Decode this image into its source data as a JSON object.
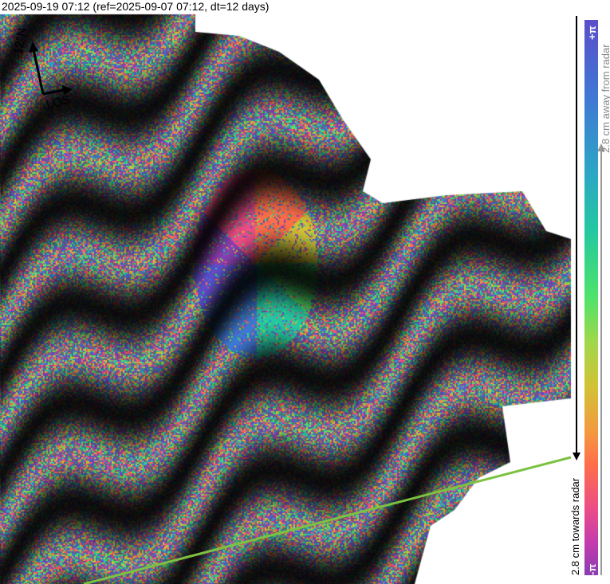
{
  "title": "2025-09-19 07:12 (ref=2025-09-07 07:12, dt=12 days)",
  "orientation": {
    "north_label": "-12°N",
    "los_label": "LOS",
    "icon": "north-los-arrows-icon"
  },
  "colorbar": {
    "top_label": "+π",
    "bottom_label": "-π",
    "towards_label": "2.8 cm towards radar",
    "away_label": "2.8 cm away from radar",
    "colors": [
      "#5b4ec9",
      "#3f78d4",
      "#24c8a0",
      "#4fe36a",
      "#d2c235",
      "#ff6e4a",
      "#ec4d86",
      "#8a3db0"
    ]
  },
  "overlay_line_color": "#7cc242"
}
